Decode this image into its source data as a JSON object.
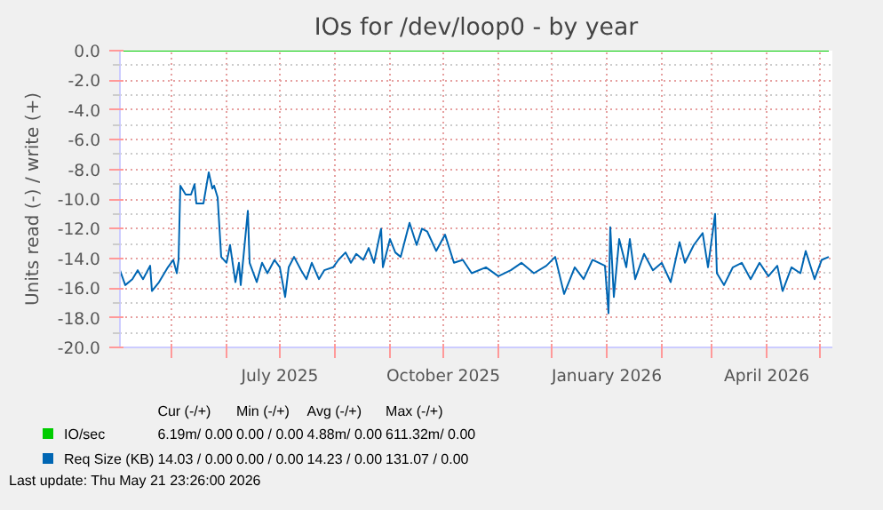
{
  "chart_data": {
    "type": "line",
    "title": "IOs for /dev/loop0 - by year",
    "ylabel": "Units read (-) / write (+)",
    "xlim": [
      "2025-04-02",
      "2026-05-08"
    ],
    "xticks": [
      {
        "value": "2025-05-01",
        "label": null
      },
      {
        "value": "2025-06-01",
        "label": null
      },
      {
        "value": "2025-07-01",
        "label": "July 2025"
      },
      {
        "value": "2025-08-01",
        "label": null
      },
      {
        "value": "2025-09-01",
        "label": null
      },
      {
        "value": "2025-10-01",
        "label": "October 2025"
      },
      {
        "value": "2025-11-01",
        "label": null
      },
      {
        "value": "2025-12-01",
        "label": null
      },
      {
        "value": "2026-01-01",
        "label": "January 2026"
      },
      {
        "value": "2026-02-01",
        "label": null
      },
      {
        "value": "2026-03-01",
        "label": null
      },
      {
        "value": "2026-04-01",
        "label": "April 2026"
      },
      {
        "value": "2026-05-01",
        "label": null
      }
    ],
    "ylim": [
      -20,
      0
    ],
    "yticks": [
      {
        "value": 0,
        "label": "0.0"
      },
      {
        "value": -2,
        "label": "-2.0"
      },
      {
        "value": -4,
        "label": "-4.0"
      },
      {
        "value": -6,
        "label": "-6.0"
      },
      {
        "value": -8,
        "label": "-8.0"
      },
      {
        "value": -10,
        "label": "-10.0"
      },
      {
        "value": -12,
        "label": "-12.0"
      },
      {
        "value": -14,
        "label": "-14.0"
      },
      {
        "value": -16,
        "label": "-16.0"
      },
      {
        "value": -18,
        "label": "-18.0"
      },
      {
        "value": -20,
        "label": "-20.0"
      }
    ],
    "grid": true,
    "legend": "bottom",
    "series": [
      {
        "name": "IO/sec",
        "color": "#00cc00",
        "x": [
          "2025-04-02",
          "2026-05-06"
        ],
        "values": [
          0,
          0
        ]
      },
      {
        "name": "Req Size (KB)",
        "color": "#0066b3",
        "x": [
          "2025-04-02",
          "2025-04-05",
          "2025-04-09",
          "2025-04-12",
          "2025-04-15",
          "2025-04-19",
          "2025-04-20",
          "2025-04-24",
          "2025-04-29",
          "2025-05-02",
          "2025-05-04",
          "2025-05-05",
          "2025-05-06",
          "2025-05-09",
          "2025-05-12",
          "2025-05-14",
          "2025-05-15",
          "2025-05-19",
          "2025-05-22",
          "2025-05-24",
          "2025-05-25",
          "2025-05-27",
          "2025-05-29",
          "2025-06-01",
          "2025-06-03",
          "2025-06-06",
          "2025-06-08",
          "2025-06-09",
          "2025-06-13",
          "2025-06-14",
          "2025-06-18",
          "2025-06-21",
          "2025-06-24",
          "2025-06-28",
          "2025-07-01",
          "2025-07-04",
          "2025-07-06",
          "2025-07-09",
          "2025-07-13",
          "2025-07-16",
          "2025-07-19",
          "2025-07-23",
          "2025-07-26",
          "2025-07-31",
          "2025-08-03",
          "2025-08-07",
          "2025-08-10",
          "2025-08-13",
          "2025-08-17",
          "2025-08-20",
          "2025-08-23",
          "2025-08-27",
          "2025-08-28",
          "2025-09-01",
          "2025-09-04",
          "2025-09-07",
          "2025-09-12",
          "2025-09-16",
          "2025-09-19",
          "2025-09-22",
          "2025-09-27",
          "2025-10-02",
          "2025-10-07",
          "2025-10-12",
          "2025-10-17",
          "2025-10-25",
          "2025-11-01",
          "2025-11-08",
          "2025-11-14",
          "2025-11-21",
          "2025-11-28",
          "2025-12-03",
          "2025-12-08",
          "2025-12-14",
          "2025-12-19",
          "2025-12-24",
          "2025-12-31",
          "2026-01-02",
          "2026-01-03",
          "2026-01-05",
          "2026-01-08",
          "2026-01-12",
          "2026-01-14",
          "2026-01-17",
          "2026-01-22",
          "2026-01-27",
          "2026-02-01",
          "2026-02-06",
          "2026-02-11",
          "2026-02-14",
          "2026-02-19",
          "2026-02-24",
          "2026-02-27",
          "2026-03-03",
          "2026-03-04",
          "2026-03-08",
          "2026-03-13",
          "2026-03-18",
          "2026-03-23",
          "2026-03-28",
          "2026-04-02",
          "2026-04-07",
          "2026-04-10",
          "2026-04-15",
          "2026-04-20",
          "2026-04-23",
          "2026-04-28",
          "2026-05-02",
          "2026-05-06"
        ],
        "values": [
          -14.8,
          -15.8,
          -15.4,
          -14.8,
          -15.4,
          -14.5,
          -16.2,
          -15.6,
          -14.6,
          -14.1,
          -15.0,
          -14.1,
          -9.1,
          -9.7,
          -9.7,
          -9.0,
          -10.3,
          -10.3,
          -8.2,
          -9.3,
          -9.1,
          -9.9,
          -13.9,
          -14.3,
          -13.1,
          -15.6,
          -14.3,
          -15.8,
          -10.8,
          -14.3,
          -15.6,
          -14.3,
          -15.0,
          -14.1,
          -14.6,
          -16.6,
          -14.6,
          -13.9,
          -14.8,
          -15.4,
          -14.3,
          -15.4,
          -14.8,
          -14.6,
          -14.1,
          -13.6,
          -14.3,
          -13.7,
          -14.1,
          -13.3,
          -14.3,
          -12.0,
          -14.6,
          -12.7,
          -13.6,
          -13.9,
          -11.6,
          -13.1,
          -12.0,
          -12.2,
          -13.5,
          -12.4,
          -14.3,
          -14.1,
          -15.0,
          -14.6,
          -15.2,
          -14.8,
          -14.3,
          -15.0,
          -14.5,
          -13.9,
          -16.4,
          -14.6,
          -15.4,
          -14.1,
          -14.5,
          -17.7,
          -11.9,
          -16.6,
          -12.7,
          -14.6,
          -12.7,
          -15.4,
          -13.7,
          -14.8,
          -14.3,
          -15.6,
          -12.9,
          -14.3,
          -13.1,
          -12.3,
          -14.6,
          -11.0,
          -15.0,
          -15.8,
          -14.6,
          -14.3,
          -15.4,
          -14.3,
          -15.2,
          -14.5,
          -16.2,
          -14.6,
          -15.0,
          -13.5,
          -15.4,
          -14.1,
          -13.9
        ]
      }
    ],
    "annotations": [
      "Cur (-/+)",
      "Min (-/+)",
      "Avg (-/+)",
      "Max (-/+)",
      "6.19m/ 0.00",
      "0.00 / 0.00",
      "4.88m/ 0.00",
      "611.32m/ 0.00",
      "14.03 / 0.00",
      "0.00 / 0.00",
      "14.23 / 0.00",
      "131.07 / 0.00",
      "Last update: Thu May 21 23:26:00 2026"
    ]
  }
}
